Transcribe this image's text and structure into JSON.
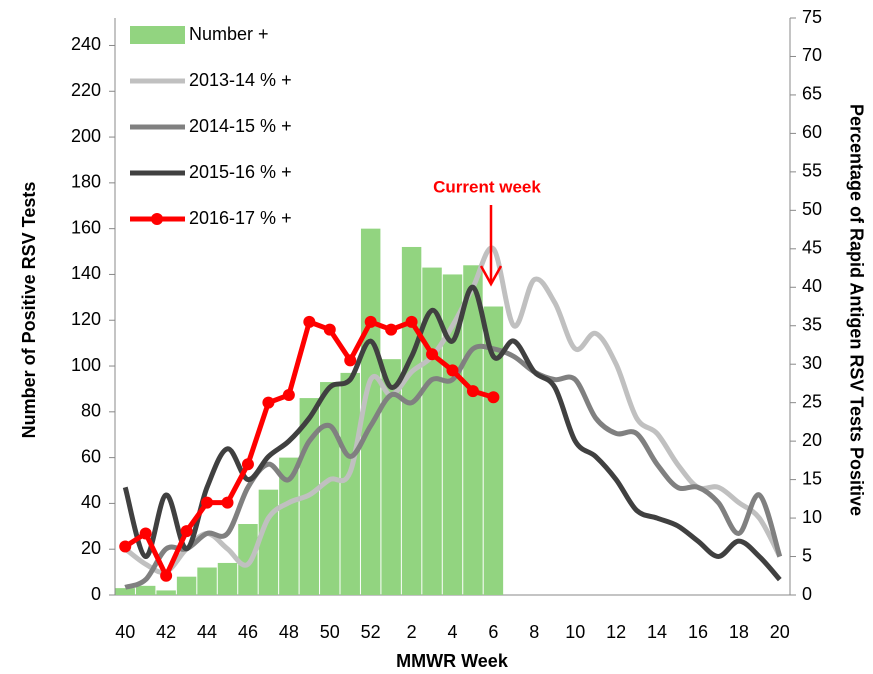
{
  "chart_data": {
    "type": "combo",
    "x_label": "MMWR Week",
    "y_label": "Number of Positive RSV Tests",
    "y2_label": "Percentage of Rapid Antigen RSV Tests Positive",
    "annotation": "Current week",
    "annotation_color": "#ff0000",
    "categories": [
      "40",
      null,
      "42",
      null,
      "44",
      null,
      "46",
      null,
      "48",
      null,
      "50",
      null,
      "52",
      null,
      "2",
      null,
      "4",
      null,
      "6",
      null,
      "8",
      null,
      "10",
      null,
      "12",
      null,
      "14",
      null,
      "16",
      null,
      "18",
      null,
      "20"
    ],
    "ylim": [
      0,
      252
    ],
    "yticks": [
      0,
      20,
      40,
      60,
      80,
      100,
      120,
      140,
      160,
      180,
      200,
      220,
      240
    ],
    "y2lim": [
      0,
      75
    ],
    "y2ticks": [
      0,
      5,
      10,
      15,
      20,
      25,
      30,
      35,
      40,
      45,
      50,
      55,
      60,
      65,
      70,
      75
    ],
    "legend": "upper left",
    "series": [
      {
        "name": "Number +",
        "type": "bar",
        "color": "#92d480",
        "values": [
          3,
          4,
          2,
          8,
          12,
          14,
          31,
          46,
          60,
          86,
          93,
          97,
          160,
          103,
          152,
          143,
          140,
          144,
          126,
          null,
          null,
          null,
          null,
          null,
          null,
          null,
          null,
          null,
          null,
          null,
          null,
          null,
          null
        ]
      },
      {
        "name": "2013-14 % +",
        "type": "line",
        "axis": "y2",
        "color": "#c0c0c0",
        "values": [
          6,
          4,
          3,
          6,
          8,
          6,
          4,
          10,
          12,
          13,
          15,
          16,
          28,
          26,
          29,
          31,
          35,
          40,
          45,
          35,
          41,
          38,
          32,
          34,
          30,
          23,
          21,
          17,
          14,
          14,
          12,
          10,
          5
        ]
      },
      {
        "name": "2014-15 % +",
        "type": "line",
        "axis": "y2",
        "color": "#808080",
        "values": [
          1,
          2,
          6,
          6,
          8,
          8,
          14,
          17,
          15,
          20,
          22,
          18,
          22,
          26,
          25,
          28,
          28,
          32,
          32,
          31,
          29,
          28,
          28,
          23,
          21,
          21,
          17,
          14,
          14,
          12,
          8,
          13,
          5
        ]
      },
      {
        "name": "2015-16 % +",
        "type": "line",
        "axis": "y2",
        "color": "#404040",
        "values": [
          14,
          5,
          13,
          6,
          14,
          19,
          15,
          18,
          20,
          23,
          27,
          28,
          33,
          27,
          31,
          37,
          33,
          40,
          31,
          33,
          29,
          27,
          20,
          18,
          15,
          11,
          10,
          9,
          7,
          5,
          7,
          5,
          2
        ]
      },
      {
        "name": "2016-17 % +",
        "type": "line",
        "axis": "y2",
        "color": "#ff0000",
        "markers": true,
        "values": [
          6.3,
          8,
          2.5,
          8.3,
          12,
          12,
          17,
          25,
          26,
          35.5,
          34.5,
          30.5,
          35.5,
          34.5,
          35.5,
          31.3,
          29.2,
          26.5,
          25.7,
          null,
          null,
          null,
          null,
          null,
          null,
          null,
          null,
          null,
          null,
          null,
          null,
          null,
          null
        ]
      }
    ]
  }
}
